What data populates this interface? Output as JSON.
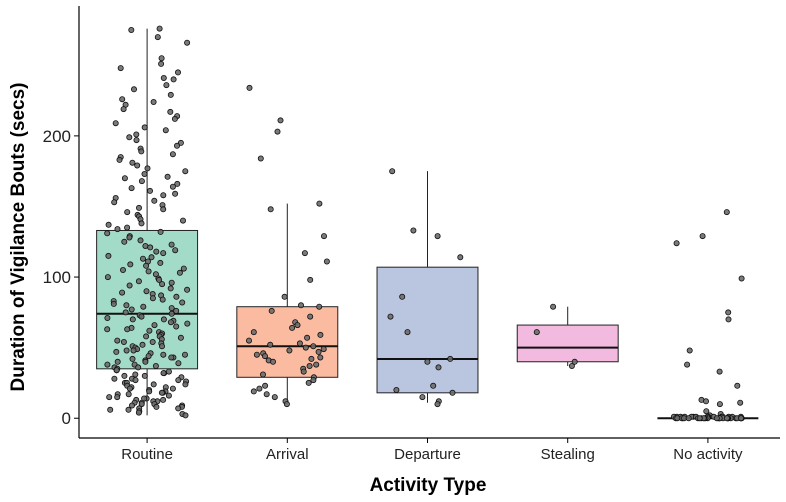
{
  "chart_data": {
    "type": "box",
    "title": "",
    "xlabel": "Activity Type",
    "ylabel": "Duration of Vigilance Bouts (secs)",
    "ylim": [
      -14,
      292
    ],
    "yticks": [
      0,
      100,
      200
    ],
    "grid": false,
    "legend": "none",
    "categories": [
      "Routine",
      "Arrival",
      "Departure",
      "Stealing",
      "No activity"
    ],
    "boxes": [
      {
        "category": "Routine",
        "color": "#a3dbc9",
        "q1": 35,
        "median": 74,
        "q3": 133,
        "whisker_low": 2,
        "whisker_high": 276
      },
      {
        "category": "Arrival",
        "color": "#fbbba0",
        "q1": 29,
        "median": 51,
        "q3": 79,
        "whisker_low": 12,
        "whisker_high": 152
      },
      {
        "category": "Departure",
        "color": "#bac5e0",
        "q1": 18,
        "median": 42,
        "q3": 107,
        "whisker_low": 11,
        "whisker_high": 175
      },
      {
        "category": "Stealing",
        "color": "#f1bade",
        "q1": 40,
        "median": 50,
        "q3": 66,
        "whisker_low": 37,
        "whisker_high": 79
      },
      {
        "category": "No activity",
        "color": "#f4f4f4",
        "q1": 0,
        "median": 0,
        "q3": 0,
        "whisker_low": 0,
        "whisker_high": 0
      }
    ],
    "points": [
      {
        "category": "Routine",
        "values": [
          276,
          275,
          270,
          266,
          255,
          251,
          248,
          245,
          241,
          240,
          236,
          233,
          229,
          226,
          224,
          222,
          219,
          217,
          214,
          212,
          209,
          206,
          204,
          201,
          199,
          197,
          195,
          193,
          191,
          189,
          187,
          185,
          183,
          181,
          179,
          177,
          175,
          173,
          171,
          170,
          168,
          166,
          164,
          163,
          161,
          159,
          158,
          156,
          154,
          153,
          151,
          149,
          148,
          146,
          144,
          143,
          141,
          140,
          138,
          137,
          135,
          134,
          132,
          131,
          129,
          128,
          126,
          125,
          123,
          122,
          121,
          119,
          118,
          117,
          115,
          114,
          113,
          111,
          110,
          109,
          108,
          106,
          105,
          104,
          103,
          102,
          100,
          99,
          98,
          97,
          96,
          95,
          94,
          92,
          91,
          90,
          89,
          88,
          87,
          86,
          85,
          84,
          83,
          82,
          81,
          80,
          79,
          78,
          77,
          76,
          75,
          74,
          73,
          72,
          71,
          70,
          70,
          69,
          68,
          67,
          66,
          65,
          64,
          63,
          63,
          62,
          61,
          60,
          59,
          58,
          58,
          57,
          56,
          55,
          54,
          54,
          53,
          52,
          51,
          51,
          50,
          49,
          48,
          48,
          47,
          46,
          45,
          45,
          44,
          43,
          43,
          42,
          41,
          40,
          40,
          39,
          38,
          38,
          37,
          36,
          36,
          35,
          34,
          34,
          33,
          32,
          32,
          31,
          30,
          30,
          29,
          28,
          28,
          27,
          27,
          26,
          25,
          25,
          24,
          24,
          23,
          22,
          22,
          21,
          21,
          20,
          19,
          19,
          18,
          18,
          17,
          17,
          16,
          15,
          15,
          14,
          14,
          13,
          13,
          12,
          12,
          11,
          11,
          10,
          10,
          9,
          9,
          8,
          8,
          7,
          7,
          6,
          6,
          5,
          4,
          3,
          2
        ]
      },
      {
        "category": "Arrival",
        "values": [
          234,
          211,
          203,
          184,
          152,
          148,
          129,
          117,
          111,
          98,
          86,
          80,
          79,
          76,
          72,
          68,
          66,
          64,
          61,
          59,
          57,
          55,
          53,
          52,
          51,
          50,
          49,
          48,
          47,
          46,
          45,
          44,
          43,
          42,
          41,
          40,
          38,
          37,
          35,
          33,
          31,
          29,
          27,
          25,
          23,
          21,
          19,
          17,
          15,
          12,
          10
        ]
      },
      {
        "category": "Departure",
        "values": [
          175,
          133,
          129,
          114,
          86,
          72,
          61,
          42,
          40,
          36,
          23,
          20,
          18,
          15,
          12,
          10
        ]
      },
      {
        "category": "Stealing",
        "values": [
          79,
          61,
          40,
          37
        ]
      },
      {
        "category": "No activity",
        "values": [
          146,
          129,
          124,
          99,
          75,
          70,
          48,
          38,
          33,
          23,
          13,
          12,
          11,
          10,
          5,
          3,
          2,
          1,
          1,
          1,
          1,
          1,
          1,
          1,
          1,
          1,
          1,
          1,
          1,
          1,
          1,
          1,
          0,
          0,
          0,
          0,
          0,
          0,
          0,
          0,
          0,
          0,
          0,
          0,
          0,
          0,
          0,
          0,
          0,
          0,
          0,
          0,
          0,
          0,
          0,
          0,
          0,
          0,
          0,
          0,
          0,
          0
        ]
      }
    ]
  }
}
